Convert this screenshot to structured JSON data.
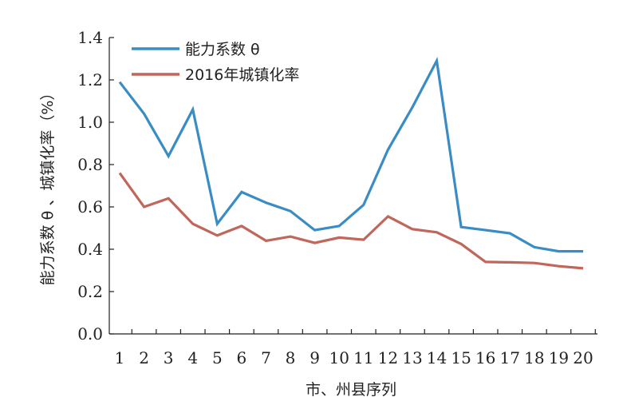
{
  "chart_data": {
    "type": "line",
    "xlabel": "市、州县序列",
    "ylabel": "能力系数 θ 、城镇化率（%）",
    "categories": [
      "1",
      "2",
      "3",
      "4",
      "5",
      "6",
      "7",
      "8",
      "9",
      "10",
      "11",
      "12",
      "13",
      "14",
      "15",
      "16",
      "17",
      "18",
      "19",
      "20"
    ],
    "ylim": [
      0,
      1.4
    ],
    "yticks": [
      "0.0",
      "0.2",
      "0.4",
      "0.6",
      "0.8",
      "1.0",
      "1.2",
      "1.4"
    ],
    "grid": false,
    "legend_position": "top-left",
    "series": [
      {
        "name": "能力系数 θ",
        "color": "#3a8cc4",
        "values": [
          1.19,
          1.04,
          0.84,
          1.06,
          0.52,
          0.67,
          0.62,
          0.58,
          0.49,
          0.51,
          0.61,
          0.87,
          1.07,
          1.29,
          0.505,
          0.49,
          0.475,
          0.41,
          0.39,
          0.39
        ]
      },
      {
        "name": "2016年城镇化率",
        "color": "#c0665a",
        "values": [
          0.76,
          0.6,
          0.64,
          0.52,
          0.465,
          0.51,
          0.44,
          0.46,
          0.43,
          0.455,
          0.445,
          0.555,
          0.495,
          0.48,
          0.425,
          0.34,
          0.338,
          0.335,
          0.32,
          0.31
        ]
      }
    ]
  }
}
